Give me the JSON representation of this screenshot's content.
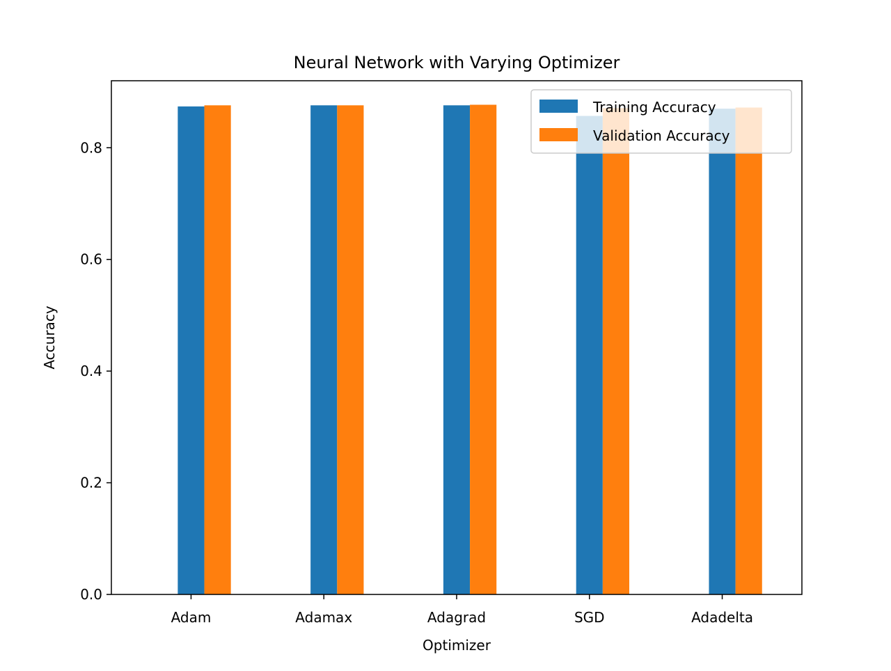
{
  "chart_data": {
    "type": "bar",
    "title": "Neural Network with Varying Optimizer",
    "xlabel": "Optimizer",
    "ylabel": "Accuracy",
    "categories": [
      "Adam",
      "Adamax",
      "Adagrad",
      "SGD",
      "Adadelta"
    ],
    "series": [
      {
        "name": "Training Accuracy",
        "color": "#1f77b4",
        "values": [
          0.874,
          0.876,
          0.876,
          0.857,
          0.87
        ]
      },
      {
        "name": "Validation Accuracy",
        "color": "#ff7f0e",
        "values": [
          0.876,
          0.876,
          0.877,
          0.871,
          0.872
        ]
      }
    ],
    "ylim": [
      0,
      0.92
    ],
    "yticks": [
      0.0,
      0.2,
      0.4,
      0.6,
      0.8
    ],
    "ytick_labels": [
      "0.0",
      "0.2",
      "0.4",
      "0.6",
      "0.8"
    ],
    "grid": false,
    "legend_position": "top-right"
  }
}
